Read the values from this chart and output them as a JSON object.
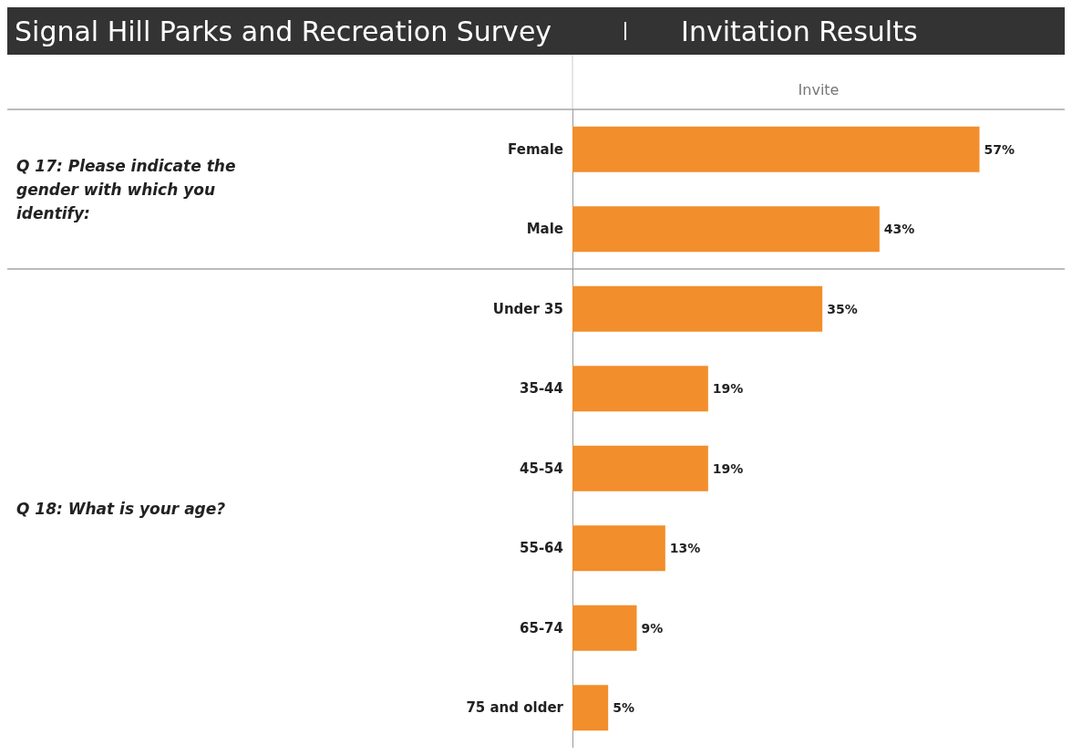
{
  "chart_data": {
    "type": "bar",
    "orientation": "horizontal",
    "title": "Signal Hill Parks and Recreation Survey",
    "subtitle": "Invitation Results",
    "categories": [
      "Female",
      "Male",
      "Under 35",
      "35-44",
      "45-54",
      "55-64",
      "65-74",
      "75 and older"
    ],
    "series": [
      {
        "name": "Invite",
        "color": "#f28e2b",
        "values": [
          57,
          43,
          35,
          19,
          19,
          13,
          9,
          5
        ],
        "value_labels": [
          "57%",
          "43%",
          "35%",
          "19%",
          "19%",
          "13%",
          "9%",
          "5%"
        ]
      }
    ],
    "tick_labels": "y",
    "annotations": [
      "Q 17: Please indicate the gender with which you identify:",
      "Q 18: What is your age?"
    ]
  }
}
